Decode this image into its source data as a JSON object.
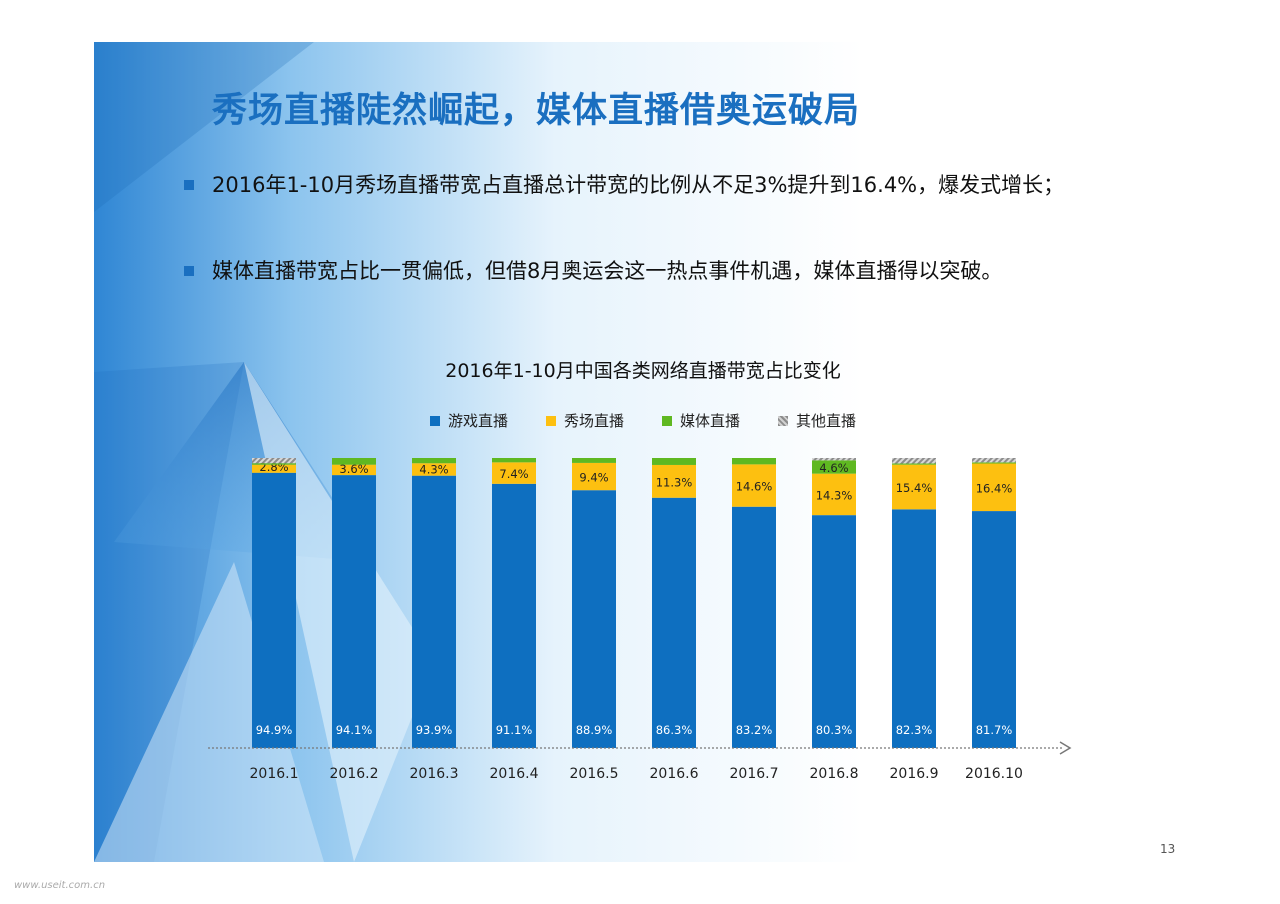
{
  "slide": {
    "title": "秀场直播陡然崛起，媒体直播借奥运破局",
    "bullets": [
      "2016年1-10月秀场直播带宽占直播总计带宽的比例从不足3%提升到16.4%，爆发式增长；",
      "媒体直播带宽占比一贯偏低，但借8月奥运会这一热点事件机遇，媒体直播得以突破。"
    ],
    "page_number": "13",
    "watermark": "www.useit.com.cn"
  },
  "colors": {
    "accent": "#1a6fc0",
    "game": "#0e6fc0",
    "show": "#fdc010",
    "media": "#5fb821",
    "other": "#a6a6a6"
  },
  "chart_data": {
    "type": "bar",
    "stacked": true,
    "title": "2016年1-10月中国各类网络直播带宽占比变化",
    "categories": [
      "2016.1",
      "2016.2",
      "2016.3",
      "2016.4",
      "2016.5",
      "2016.6",
      "2016.7",
      "2016.8",
      "2016.9",
      "2016.10"
    ],
    "series": [
      {
        "name": "游戏直播",
        "values": [
          94.9,
          94.1,
          93.9,
          91.1,
          88.9,
          86.3,
          83.2,
          80.3,
          82.3,
          81.7
        ],
        "labels": [
          "94.9%",
          "94.1%",
          "93.9%",
          "91.1%",
          "88.9%",
          "86.3%",
          "83.2%",
          "80.3%",
          "82.3%",
          "81.7%"
        ]
      },
      {
        "name": "秀场直播",
        "values": [
          2.8,
          3.6,
          4.3,
          7.4,
          9.4,
          11.3,
          14.6,
          14.3,
          15.4,
          16.4
        ],
        "labels": [
          "2.8%",
          "3.6%",
          "4.3%",
          "7.4%",
          "9.4%",
          "11.3%",
          "14.6%",
          "14.3%",
          "15.4%",
          "16.4%"
        ]
      },
      {
        "name": "媒体直播",
        "values": [
          0.5,
          2.3,
          1.8,
          1.5,
          1.7,
          2.4,
          2.2,
          4.6,
          0.4,
          0.4
        ],
        "labels": [
          "",
          "",
          "",
          "",
          "",
          "",
          "",
          "4.6%",
          "",
          ""
        ]
      },
      {
        "name": "其他直播",
        "values": [
          1.8,
          0,
          0,
          0,
          0,
          0,
          0,
          0.8,
          1.9,
          1.5
        ],
        "labels": [
          "",
          "",
          "",
          "",
          "",
          "",
          "",
          "",
          "",
          ""
        ]
      }
    ],
    "ylim": [
      0,
      100
    ],
    "legend": "top-center",
    "grid": false
  }
}
